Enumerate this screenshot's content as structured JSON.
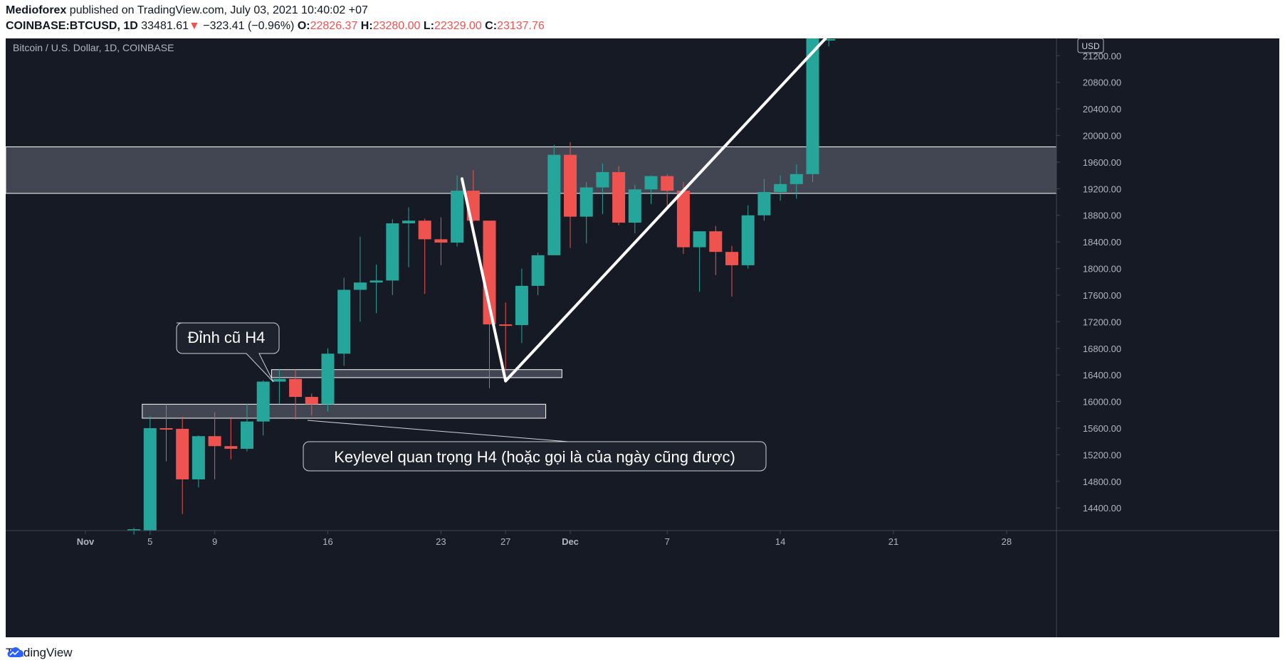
{
  "header": {
    "author": "Medioforex",
    "published_text": "published on TradingView.com, July 03, 2021 10:40:02 +07",
    "symbol": "COINBASE:BTCUSD, 1D",
    "last_price": "33481.61",
    "change_arrow": "▼",
    "change": "−323.41 (−0.96%)",
    "o_label": "O:",
    "o_value": "22826.37",
    "h_label": "H:",
    "h_value": "23280.00",
    "l_label": "L:",
    "l_value": "22329.00",
    "c_label": "C:",
    "c_value": "23137.76"
  },
  "chart_title": "Bitcoin / U.S. Dollar, 1D, COINBASE",
  "currency_badge": "USD",
  "annotations": {
    "top_label": "Đỉnh cũ H4",
    "key_label": "Keylevel quan trọng H4 (hoặc gọi là của ngày cũng được)"
  },
  "footer": {
    "brand": "TradingView"
  },
  "colors": {
    "background": "#161a25",
    "up": "#26a69a",
    "down": "#ef5350",
    "axis_text": "#b2b5be",
    "zone": "#4a4e59"
  },
  "chart_data": {
    "type": "candlestick",
    "title": "Bitcoin / U.S. Dollar, 1D, COINBASE",
    "ylim": [
      14060,
      21460
    ],
    "y_ticks": [
      "14400.00",
      "14800.00",
      "15200.00",
      "15600.00",
      "16000.00",
      "16400.00",
      "16800.00",
      "17200.00",
      "17600.00",
      "18000.00",
      "18400.00",
      "18800.00",
      "19200.00",
      "19600.00",
      "20000.00",
      "20400.00",
      "20800.00",
      "21200.00"
    ],
    "x_ticks": [
      {
        "label": "Nov",
        "day": 0
      },
      {
        "label": "5",
        "day": 4
      },
      {
        "label": "9",
        "day": 8
      },
      {
        "label": "16",
        "day": 15
      },
      {
        "label": "23",
        "day": 22
      },
      {
        "label": "27",
        "day": 26
      },
      {
        "label": "Dec",
        "day": 30
      },
      {
        "label": "7",
        "day": 36
      },
      {
        "label": "14",
        "day": 43
      },
      {
        "label": "21",
        "day": 50
      },
      {
        "label": "28",
        "day": 57
      }
    ],
    "candles": [
      {
        "day": 3,
        "o": 14060,
        "h": 14100,
        "l": 14000,
        "c": 14080
      },
      {
        "day": 4,
        "o": 14060,
        "h": 15780,
        "l": 14000,
        "c": 15600
      },
      {
        "day": 5,
        "o": 15600,
        "h": 15960,
        "l": 15100,
        "c": 15590
      },
      {
        "day": 6,
        "o": 15590,
        "h": 15770,
        "l": 14310,
        "c": 14830
      },
      {
        "day": 7,
        "o": 14830,
        "h": 15490,
        "l": 14710,
        "c": 15480
      },
      {
        "day": 8,
        "o": 15480,
        "h": 15840,
        "l": 14830,
        "c": 15330
      },
      {
        "day": 9,
        "o": 15330,
        "h": 15740,
        "l": 15130,
        "c": 15290
      },
      {
        "day": 10,
        "o": 15290,
        "h": 15970,
        "l": 15250,
        "c": 15700
      },
      {
        "day": 11,
        "o": 15700,
        "h": 16320,
        "l": 15490,
        "c": 16300
      },
      {
        "day": 12,
        "o": 16300,
        "h": 16490,
        "l": 15970,
        "c": 16340
      },
      {
        "day": 13,
        "o": 16340,
        "h": 16480,
        "l": 15730,
        "c": 16070
      },
      {
        "day": 14,
        "o": 16070,
        "h": 16120,
        "l": 15790,
        "c": 15960
      },
      {
        "day": 15,
        "o": 15960,
        "h": 16800,
        "l": 15850,
        "c": 16720
      },
      {
        "day": 16,
        "o": 16720,
        "h": 17860,
        "l": 16540,
        "c": 17680
      },
      {
        "day": 17,
        "o": 17680,
        "h": 18480,
        "l": 17200,
        "c": 17790
      },
      {
        "day": 18,
        "o": 17790,
        "h": 18060,
        "l": 17330,
        "c": 17820
      },
      {
        "day": 19,
        "o": 17820,
        "h": 18740,
        "l": 17600,
        "c": 18680
      },
      {
        "day": 20,
        "o": 18680,
        "h": 18920,
        "l": 18020,
        "c": 18720
      },
      {
        "day": 21,
        "o": 18720,
        "h": 18750,
        "l": 17620,
        "c": 18440
      },
      {
        "day": 22,
        "o": 18440,
        "h": 18770,
        "l": 18050,
        "c": 18390
      },
      {
        "day": 23,
        "o": 18390,
        "h": 19400,
        "l": 18330,
        "c": 19170
      },
      {
        "day": 24,
        "o": 19170,
        "h": 19480,
        "l": 18700,
        "c": 18720
      },
      {
        "day": 25,
        "o": 18720,
        "h": 18720,
        "l": 16200,
        "c": 17160
      },
      {
        "day": 26,
        "o": 17160,
        "h": 17490,
        "l": 16460,
        "c": 17150
      },
      {
        "day": 27,
        "o": 17150,
        "h": 18000,
        "l": 16880,
        "c": 17740
      },
      {
        "day": 28,
        "o": 17740,
        "h": 18240,
        "l": 17600,
        "c": 18200
      },
      {
        "day": 29,
        "o": 18200,
        "h": 19860,
        "l": 18200,
        "c": 19710
      },
      {
        "day": 30,
        "o": 19710,
        "h": 19900,
        "l": 18310,
        "c": 18780
      },
      {
        "day": 31,
        "o": 18780,
        "h": 19300,
        "l": 18380,
        "c": 19220
      },
      {
        "day": 32,
        "o": 19220,
        "h": 19580,
        "l": 18820,
        "c": 19450
      },
      {
        "day": 33,
        "o": 19450,
        "h": 19540,
        "l": 18650,
        "c": 18690
      },
      {
        "day": 34,
        "o": 18690,
        "h": 19260,
        "l": 18530,
        "c": 19190
      },
      {
        "day": 35,
        "o": 19190,
        "h": 19400,
        "l": 18970,
        "c": 19390
      },
      {
        "day": 36,
        "o": 19390,
        "h": 19420,
        "l": 18900,
        "c": 19170
      },
      {
        "day": 37,
        "o": 19170,
        "h": 19300,
        "l": 18220,
        "c": 18320
      },
      {
        "day": 38,
        "o": 18320,
        "h": 18560,
        "l": 17650,
        "c": 18560
      },
      {
        "day": 39,
        "o": 18560,
        "h": 18640,
        "l": 17900,
        "c": 18250
      },
      {
        "day": 40,
        "o": 18250,
        "h": 18340,
        "l": 17580,
        "c": 18050
      },
      {
        "day": 41,
        "o": 18050,
        "h": 18950,
        "l": 18000,
        "c": 18800
      },
      {
        "day": 42,
        "o": 18800,
        "h": 19350,
        "l": 18720,
        "c": 19150
      },
      {
        "day": 43,
        "o": 19150,
        "h": 19400,
        "l": 19020,
        "c": 19270
      },
      {
        "day": 44,
        "o": 19270,
        "h": 19570,
        "l": 19050,
        "c": 19420
      },
      {
        "day": 45,
        "o": 19420,
        "h": 21460,
        "l": 19300,
        "c": 21460
      },
      {
        "day": 46,
        "o": 21440,
        "h": 21460,
        "l": 21340,
        "c": 21450
      }
    ],
    "zones": [
      {
        "name": "resistance-zone",
        "low": 19130,
        "high": 19830
      },
      {
        "name": "old-high-h4",
        "from_day": 12,
        "to_day": 29,
        "low": 16360,
        "high": 16480
      },
      {
        "name": "keylevel-h4",
        "from_day": 4,
        "to_day": 28,
        "low": 15750,
        "high": 15960
      }
    ],
    "drawn_lines": [
      {
        "name": "trend-line-down",
        "from": {
          "day": 23.3,
          "price": 19350
        },
        "to": {
          "day": 26,
          "price": 16310
        }
      },
      {
        "name": "trend-line-up",
        "from": {
          "day": 26,
          "price": 16310
        },
        "to": {
          "day": 45.8,
          "price": 21460
        }
      }
    ]
  }
}
